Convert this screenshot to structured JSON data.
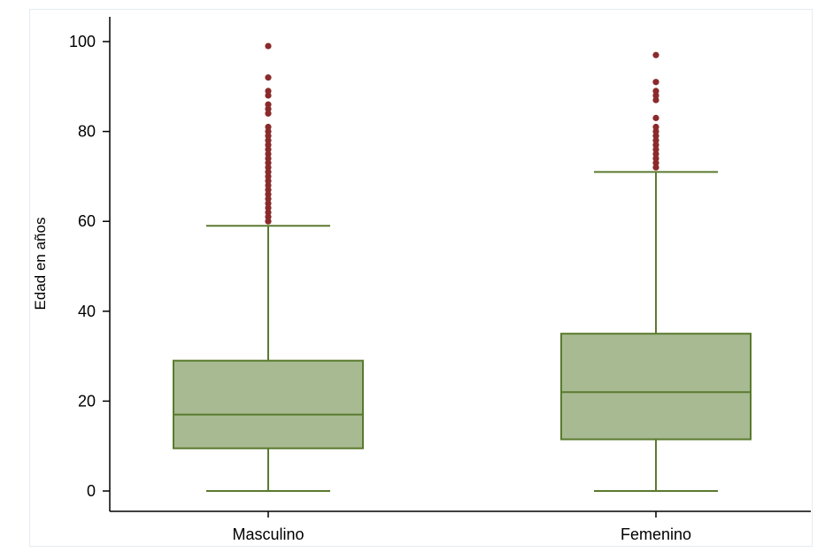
{
  "colors": {
    "box_fill": "#a8ba92",
    "box_stroke": "#5a7a2e",
    "outlier": "#8b2a2a",
    "axis": "#000000",
    "frame": "#e3ecf1"
  },
  "chart_data": {
    "type": "box",
    "title": "",
    "xlabel": "",
    "ylabel": "Edad en años",
    "ylim": [
      0,
      100
    ],
    "yticks": [
      0,
      20,
      40,
      60,
      80,
      100
    ],
    "grid": false,
    "legend": "none",
    "categories": [
      "Masculino",
      "Femenino"
    ],
    "boxes": [
      {
        "category": "Masculino",
        "whisker_low": 0,
        "q1": 9.5,
        "median": 17,
        "q3": 29,
        "whisker_high": 59,
        "outliers": [
          60,
          61,
          62,
          63,
          64,
          65,
          66,
          67,
          68,
          69,
          70,
          71,
          72,
          73,
          74,
          75,
          76,
          77,
          78,
          79,
          80,
          81,
          84,
          85,
          86,
          88,
          89,
          92,
          99
        ]
      },
      {
        "category": "Femenino",
        "whisker_low": 0,
        "q1": 11.5,
        "median": 22,
        "q3": 35,
        "whisker_high": 71,
        "outliers": [
          72,
          73,
          74,
          75,
          76,
          77,
          78,
          79,
          80,
          81,
          83,
          87,
          88,
          89,
          91,
          97
        ]
      }
    ]
  }
}
